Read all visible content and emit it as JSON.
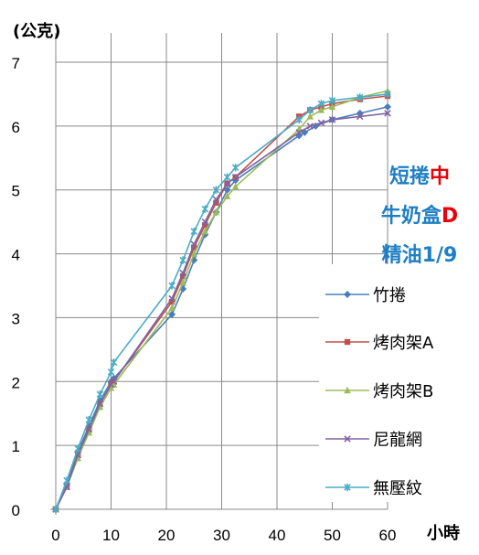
{
  "chart_data": {
    "type": "line",
    "ylabel": "(公克)",
    "xlabel": "小時",
    "xlim": [
      0,
      60
    ],
    "ylim": [
      0,
      7
    ],
    "x_ticks": [
      "0",
      "10",
      "20",
      "30",
      "40",
      "50",
      "60"
    ],
    "y_ticks": [
      "0",
      "1",
      "2",
      "3",
      "4",
      "5",
      "6",
      "7"
    ],
    "grid": true,
    "legend_position": "right",
    "annotation": [
      [
        {
          "text": "短捲",
          "color": "#1f7fc4"
        },
        {
          "text": "中",
          "color": "#e8000b"
        }
      ],
      [
        {
          "text": "牛奶盒",
          "color": "#1f7fc4"
        },
        {
          "text": "D",
          "color": "#e8000b"
        }
      ],
      [
        {
          "text": "精油1/9",
          "color": "#1f7fc4"
        }
      ]
    ],
    "series": [
      {
        "name": "竹捲",
        "color": "#4a7ebb",
        "marker": "diamond",
        "points": [
          [
            0,
            0
          ],
          [
            2,
            0.4
          ],
          [
            4,
            0.9
          ],
          [
            6,
            1.3
          ],
          [
            8,
            1.7
          ],
          [
            10,
            2.0
          ],
          [
            10.5,
            2.05
          ],
          [
            21,
            3.05
          ],
          [
            23,
            3.45
          ],
          [
            25,
            3.9
          ],
          [
            27,
            4.3
          ],
          [
            29,
            4.65
          ],
          [
            31,
            5.0
          ],
          [
            32.5,
            5.15
          ],
          [
            44,
            5.85
          ],
          [
            45,
            5.9
          ],
          [
            47,
            6.0
          ],
          [
            50,
            6.1
          ],
          [
            55,
            6.2
          ],
          [
            60,
            6.3
          ]
        ]
      },
      {
        "name": "烤肉架A",
        "color": "#c0504d",
        "marker": "square",
        "points": [
          [
            0,
            0
          ],
          [
            2,
            0.35
          ],
          [
            4,
            0.85
          ],
          [
            6,
            1.25
          ],
          [
            8,
            1.65
          ],
          [
            10,
            1.95
          ],
          [
            10.5,
            2.0
          ],
          [
            21,
            3.25
          ],
          [
            23,
            3.65
          ],
          [
            25,
            4.1
          ],
          [
            27,
            4.45
          ],
          [
            29,
            4.8
          ],
          [
            31,
            5.1
          ],
          [
            32.5,
            5.2
          ],
          [
            44,
            6.15
          ],
          [
            46,
            6.25
          ],
          [
            48,
            6.3
          ],
          [
            50,
            6.35
          ],
          [
            55,
            6.42
          ],
          [
            60,
            6.47
          ]
        ]
      },
      {
        "name": "烤肉架B",
        "color": "#9bbb59",
        "marker": "triangle",
        "points": [
          [
            0,
            0
          ],
          [
            2,
            0.35
          ],
          [
            4,
            0.8
          ],
          [
            6,
            1.2
          ],
          [
            8,
            1.6
          ],
          [
            10,
            1.9
          ],
          [
            10.5,
            1.95
          ],
          [
            21,
            3.15
          ],
          [
            23,
            3.55
          ],
          [
            25,
            4.0
          ],
          [
            27,
            4.35
          ],
          [
            29,
            4.65
          ],
          [
            31,
            4.9
          ],
          [
            32.5,
            5.05
          ],
          [
            44,
            5.95
          ],
          [
            46,
            6.15
          ],
          [
            48,
            6.25
          ],
          [
            50,
            6.3
          ],
          [
            55,
            6.45
          ],
          [
            60,
            6.55
          ]
        ]
      },
      {
        "name": "尼龍網",
        "color": "#8064a2",
        "marker": "x",
        "points": [
          [
            0,
            0
          ],
          [
            2,
            0.35
          ],
          [
            4,
            0.85
          ],
          [
            6,
            1.25
          ],
          [
            8,
            1.65
          ],
          [
            10,
            1.95
          ],
          [
            10.5,
            2.0
          ],
          [
            21,
            3.3
          ],
          [
            23,
            3.7
          ],
          [
            25,
            4.15
          ],
          [
            27,
            4.5
          ],
          [
            29,
            4.85
          ],
          [
            31,
            5.1
          ],
          [
            32.5,
            5.2
          ],
          [
            44,
            5.9
          ],
          [
            46,
            6.0
          ],
          [
            48,
            6.05
          ],
          [
            50,
            6.1
          ],
          [
            55,
            6.15
          ],
          [
            60,
            6.2
          ]
        ]
      },
      {
        "name": "無壓紋",
        "color": "#4bacc6",
        "marker": "star",
        "points": [
          [
            0,
            0
          ],
          [
            2,
            0.45
          ],
          [
            4,
            0.95
          ],
          [
            6,
            1.4
          ],
          [
            8,
            1.8
          ],
          [
            10,
            2.15
          ],
          [
            10.5,
            2.3
          ],
          [
            21,
            3.5
          ],
          [
            23,
            3.9
          ],
          [
            25,
            4.35
          ],
          [
            27,
            4.7
          ],
          [
            29,
            5.0
          ],
          [
            31,
            5.2
          ],
          [
            32.5,
            5.35
          ],
          [
            44,
            6.1
          ],
          [
            46,
            6.25
          ],
          [
            48,
            6.35
          ],
          [
            50,
            6.4
          ],
          [
            55,
            6.45
          ],
          [
            60,
            6.5
          ]
        ]
      }
    ]
  }
}
